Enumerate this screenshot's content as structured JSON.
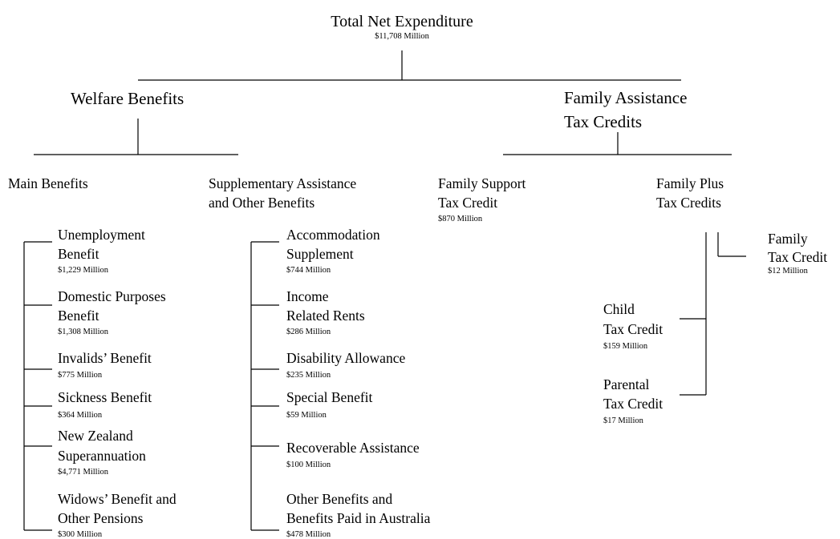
{
  "nodes": [
    {
      "lines": [
        "Total Net Expenditure"
      ],
      "amount": "$11,708 Million"
    },
    {
      "lines": [
        "Welfare Benefits"
      ]
    },
    {
      "lines": [
        "Family Assistance",
        "Tax Credits"
      ]
    },
    {
      "lines": [
        "Main Benefits"
      ]
    },
    {
      "lines": [
        "Supplementary Assistance",
        "and Other Benefits"
      ]
    },
    {
      "lines": [
        "Family Support",
        "Tax Credit"
      ],
      "amount": "$870 Million"
    },
    {
      "lines": [
        "Family Plus",
        "Tax Credits"
      ]
    },
    {
      "lines": [
        "Unemployment",
        "Benefit"
      ],
      "amount": "$1,229 Million"
    },
    {
      "lines": [
        "Domestic Purposes",
        "Benefit"
      ],
      "amount": "$1,308 Million"
    },
    {
      "lines": [
        "Invalids’ Benefit"
      ],
      "amount": "$775 Million"
    },
    {
      "lines": [
        "Sickness Benefit"
      ],
      "amount": "$364 Million"
    },
    {
      "lines": [
        "New Zealand",
        "Superannuation"
      ],
      "amount": "$4,771 Million"
    },
    {
      "lines": [
        "Widows’ Benefit and",
        "Other Pensions"
      ],
      "amount": "$300 Million"
    },
    {
      "lines": [
        "Accommodation",
        "Supplement"
      ],
      "amount": "$744 Million"
    },
    {
      "lines": [
        "Income",
        "Related Rents"
      ],
      "amount": "$286 Million"
    },
    {
      "lines": [
        "Disability Allowance"
      ],
      "amount": "$235 Million"
    },
    {
      "lines": [
        "Special Benefit"
      ],
      "amount": "$59 Million"
    },
    {
      "lines": [
        "Recoverable Assistance"
      ],
      "amount": "$100 Million"
    },
    {
      "lines": [
        "Other Benefits and",
        "Benefits Paid in Australia"
      ],
      "amount": "$478 Million"
    },
    {
      "lines": [
        "Family",
        "Tax Credit"
      ],
      "amount": "$12 Million"
    },
    {
      "lines": [
        "Child",
        "Tax Credit"
      ],
      "amount": "$159 Million"
    },
    {
      "lines": [
        "Parental",
        "Tax Credit"
      ],
      "amount": "$17 Million"
    }
  ]
}
